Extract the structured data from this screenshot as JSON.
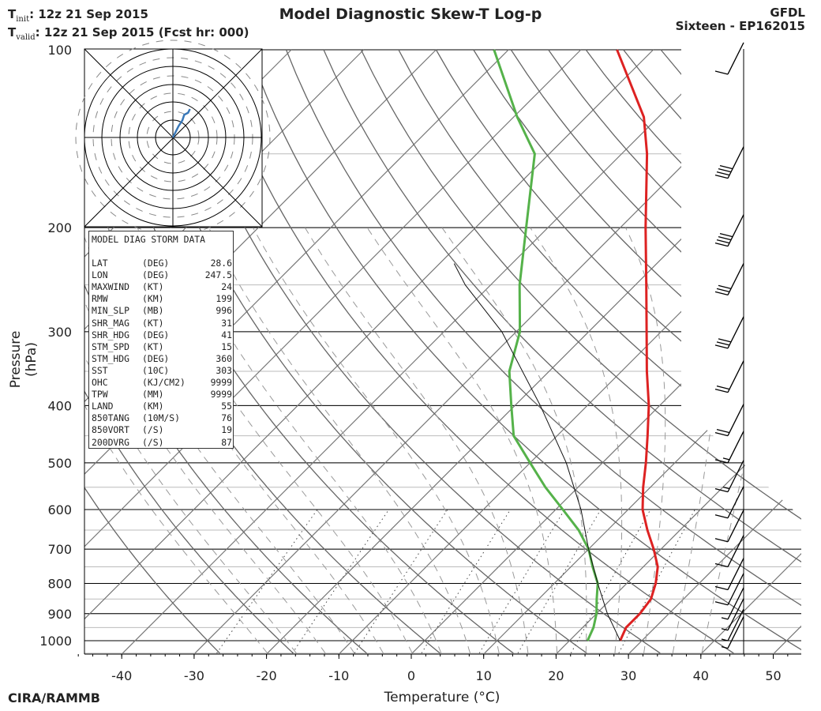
{
  "header": {
    "init_label": "T",
    "init_sub": "init",
    "init_value": ":  12z 21 Sep 2015",
    "valid_label": "T",
    "valid_sub": "valid",
    "valid_value": ": 12z 21 Sep 2015 (Fcst hr: 000)",
    "title": "Model Diagnostic Skew-T Log-p",
    "model": "GFDL",
    "storm": "Sixteen - EP162015"
  },
  "footer": {
    "credit": "CIRA/RAMMB",
    "xlabel": "Temperature (°C)",
    "ylabel": "Pressure (hPa)"
  },
  "storm_box": {
    "heading": "MODEL DIAG STORM DATA",
    "rows": [
      {
        "name": "LAT",
        "unit": "(DEG)",
        "value": "28.6"
      },
      {
        "name": "LON",
        "unit": "(DEG)",
        "value": "247.5"
      },
      {
        "name": "MAXWIND",
        "unit": "(KT)",
        "value": "24"
      },
      {
        "name": "RMW",
        "unit": "(KM)",
        "value": "199"
      },
      {
        "name": "MIN_SLP",
        "unit": "(MB)",
        "value": "996"
      },
      {
        "name": "SHR_MAG",
        "unit": "(KT)",
        "value": "31"
      },
      {
        "name": "SHR_HDG",
        "unit": "(DEG)",
        "value": "41"
      },
      {
        "name": "STM_SPD",
        "unit": "(KT)",
        "value": "15"
      },
      {
        "name": "STM_HDG",
        "unit": "(DEG)",
        "value": "360"
      },
      {
        "name": "SST",
        "unit": "(10C)",
        "value": "303"
      },
      {
        "name": "OHC",
        "unit": "(KJ/CM2)",
        "value": "9999"
      },
      {
        "name": "TPW",
        "unit": "(MM)",
        "value": "9999"
      },
      {
        "name": "LAND",
        "unit": "(KM)",
        "value": "55"
      },
      {
        "name": "850TANG",
        "unit": "(10M/S)",
        "value": "76"
      },
      {
        "name": "850VORT",
        "unit": "(/S)",
        "value": "19"
      },
      {
        "name": "200DVRG",
        "unit": "(/S)",
        "value": "87"
      }
    ]
  },
  "colors": {
    "temperature": "#dd2222",
    "dewpoint": "#55b24a",
    "hodograph": "#3a78b8",
    "isotherm": "#777777",
    "dry_adiabat": "#666666",
    "moist_adiabat": "#999999"
  },
  "chart_data": {
    "type": "line",
    "title": "Model Diagnostic Skew-T Log-p",
    "xlabel": "Temperature (°C)",
    "ylabel": "Pressure (hPa)",
    "xlim": [
      -47,
      52
    ],
    "ylim": [
      1050,
      100
    ],
    "x_ticks": [
      "-40",
      "-30",
      "-20",
      "-10",
      "0",
      "10",
      "20",
      "30",
      "40",
      "50"
    ],
    "x_tick_values": [
      -40,
      -30,
      -20,
      -10,
      0,
      10,
      20,
      30,
      40,
      50
    ],
    "y_ticks": [
      "100",
      "200",
      "300",
      "400",
      "500",
      "600",
      "700",
      "800",
      "900",
      "1000"
    ],
    "y_tick_values": [
      100,
      200,
      300,
      400,
      500,
      600,
      700,
      800,
      900,
      1000
    ],
    "series": [
      {
        "name": "Temperature",
        "pressure": [
          1000,
          950,
          900,
          850,
          800,
          750,
          700,
          650,
          600,
          550,
          500,
          450,
          400,
          350,
          300,
          250,
          200,
          150,
          130,
          100
        ],
        "values": [
          27.0,
          26.0,
          26.0,
          25.5,
          24.0,
          22.0,
          19.0,
          15.5,
          12.0,
          9.0,
          6.0,
          2.5,
          -1.5,
          -6.5,
          -12.0,
          -18.5,
          -26.5,
          -36.5,
          -42.0,
          -55.0
        ]
      },
      {
        "name": "Dewpoint",
        "pressure": [
          1000,
          950,
          900,
          850,
          800,
          750,
          700,
          650,
          600,
          550,
          500,
          450,
          400,
          350,
          300,
          250,
          200,
          150,
          130,
          100
        ],
        "values": [
          22.5,
          21.5,
          20.0,
          18.0,
          16.0,
          13.0,
          10.0,
          6.0,
          1.0,
          -4.5,
          -10.0,
          -16.0,
          -20.5,
          -25.5,
          -29.5,
          -36.0,
          -43.0,
          -52.0,
          -59.5,
          -72.0
        ]
      },
      {
        "name": "Parcel",
        "pressure": [
          1000,
          900,
          800,
          700,
          600,
          500,
          400,
          300,
          250,
          230
        ],
        "values": [
          27.0,
          21.5,
          16.0,
          10.0,
          3.5,
          -5.0,
          -16.5,
          -32.0,
          -43.5,
          -48.0
        ]
      }
    ],
    "wind_barbs": [
      {
        "p": 110,
        "speed_kt": 10
      },
      {
        "p": 165,
        "speed_kt": 40
      },
      {
        "p": 215,
        "speed_kt": 40
      },
      {
        "p": 260,
        "speed_kt": 30
      },
      {
        "p": 320,
        "speed_kt": 30
      },
      {
        "p": 380,
        "speed_kt": 20
      },
      {
        "p": 450,
        "speed_kt": 20
      },
      {
        "p": 500,
        "speed_kt": 15
      },
      {
        "p": 560,
        "speed_kt": 15
      },
      {
        "p": 620,
        "speed_kt": 10
      },
      {
        "p": 680,
        "speed_kt": 10
      },
      {
        "p": 750,
        "speed_kt": 10
      },
      {
        "p": 820,
        "speed_kt": 10
      },
      {
        "p": 870,
        "speed_kt": 10
      },
      {
        "p": 920,
        "speed_kt": 5
      },
      {
        "p": 960,
        "speed_kt": 5
      },
      {
        "p": 1000,
        "speed_kt": 5
      },
      {
        "p": 1030,
        "speed_kt": 5
      }
    ],
    "hodograph": {
      "u": [
        0,
        2,
        3,
        5,
        6,
        8,
        9
      ],
      "v": [
        0,
        4,
        6,
        9,
        12,
        13,
        15
      ]
    }
  }
}
